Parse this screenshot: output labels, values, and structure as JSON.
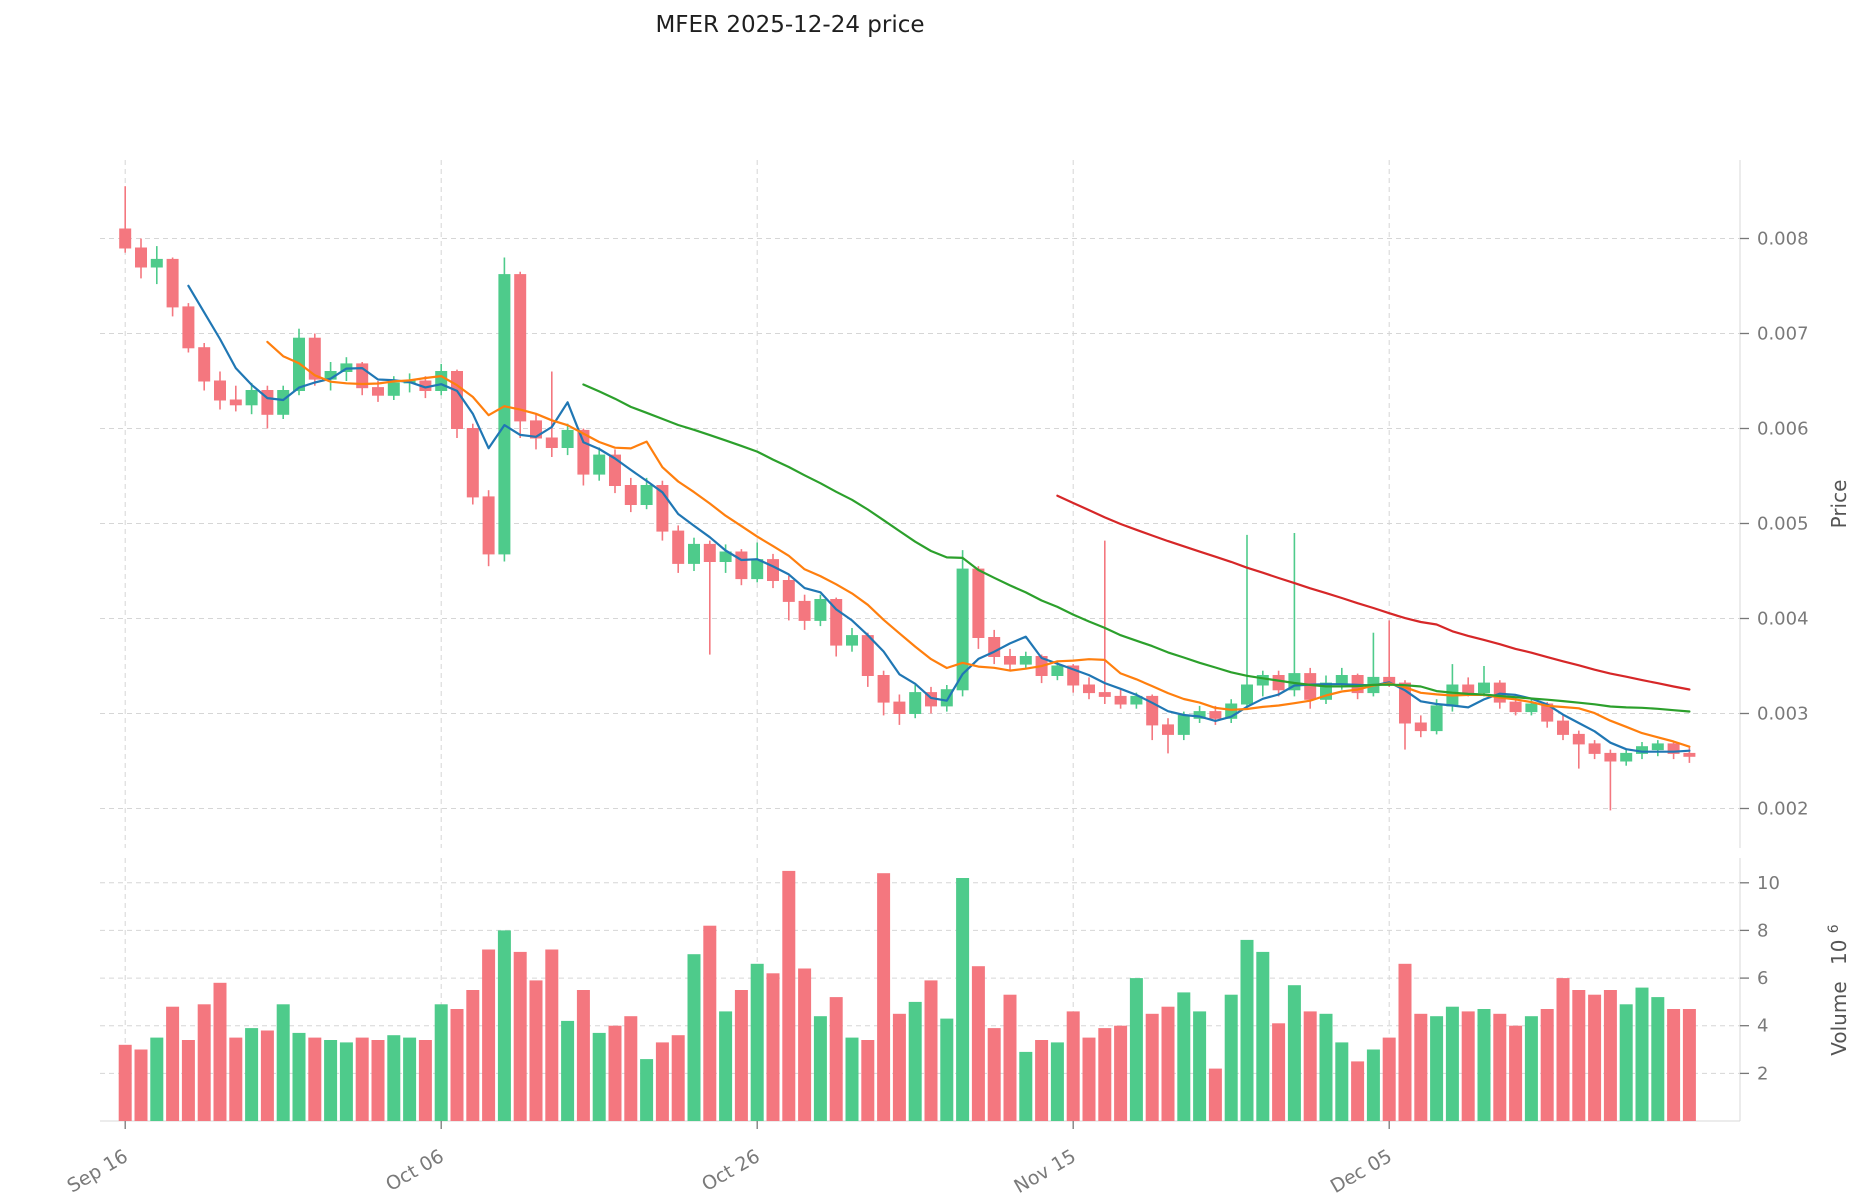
{
  "title": "MFER  2025-12-24  price",
  "price_axis": {
    "label": "Price",
    "ticks": [
      {
        "value": 0.002,
        "label": "0.002"
      },
      {
        "value": 0.003,
        "label": "0.003"
      },
      {
        "value": 0.004,
        "label": "0.004"
      },
      {
        "value": 0.005,
        "label": "0.005"
      },
      {
        "value": 0.006,
        "label": "0.006"
      },
      {
        "value": 0.007,
        "label": "0.007"
      },
      {
        "value": 0.008,
        "label": "0.008"
      }
    ]
  },
  "volume_axis": {
    "label": "Volume",
    "scale_base": "10",
    "scale_exponent": "6",
    "ticks": [
      {
        "value": 2,
        "label": "2"
      },
      {
        "value": 4,
        "label": "4"
      },
      {
        "value": 6,
        "label": "6"
      },
      {
        "value": 8,
        "label": "8"
      },
      {
        "value": 10,
        "label": "10"
      }
    ]
  },
  "x_axis": {
    "ticks": [
      {
        "index": 0,
        "label": "Sep 16"
      },
      {
        "index": 20,
        "label": "Oct 06"
      },
      {
        "index": 40,
        "label": "Oct 26"
      },
      {
        "index": 60,
        "label": "Nov 15"
      },
      {
        "index": 80,
        "label": "Dec 05"
      }
    ]
  },
  "colors": {
    "up": "#4ecb8b",
    "down": "#f4777f",
    "ma": [
      "#2077b4",
      "#ff7f0e",
      "#2ca02c",
      "#d62728"
    ],
    "grid": "#d6d6d6",
    "spine": "#d9d9d9",
    "tick_mark": "#777777",
    "tick_text": "#7a7a7a",
    "axis_label": "#555555",
    "title": "#1f1f1f",
    "background": "#ffffff"
  },
  "chart_data": {
    "type": "candlestick",
    "has_volume_panel": true,
    "price_ylim": [
      0.001584,
      0.008826
    ],
    "volume_ylim_millions": [
      0,
      11.04
    ],
    "moving_averages": [
      {
        "window": 5,
        "color": "#2077b4"
      },
      {
        "window": 10,
        "color": "#ff7f0e"
      },
      {
        "window": 30,
        "color": "#2ca02c"
      },
      {
        "window": 60,
        "color": "#d62728"
      }
    ],
    "dates": [
      "2025-09-16",
      "2025-09-17",
      "2025-09-18",
      "2025-09-19",
      "2025-09-20",
      "2025-09-21",
      "2025-09-22",
      "2025-09-23",
      "2025-09-24",
      "2025-09-25",
      "2025-09-26",
      "2025-09-27",
      "2025-09-28",
      "2025-09-29",
      "2025-09-30",
      "2025-10-01",
      "2025-10-02",
      "2025-10-03",
      "2025-10-04",
      "2025-10-05",
      "2025-10-06",
      "2025-10-07",
      "2025-10-08",
      "2025-10-09",
      "2025-10-10",
      "2025-10-11",
      "2025-10-12",
      "2025-10-13",
      "2025-10-14",
      "2025-10-15",
      "2025-10-16",
      "2025-10-17",
      "2025-10-18",
      "2025-10-19",
      "2025-10-20",
      "2025-10-21",
      "2025-10-22",
      "2025-10-23",
      "2025-10-24",
      "2025-10-25",
      "2025-10-26",
      "2025-10-27",
      "2025-10-28",
      "2025-10-29",
      "2025-10-30",
      "2025-10-31",
      "2025-11-01",
      "2025-11-02",
      "2025-11-03",
      "2025-11-04",
      "2025-11-05",
      "2025-11-06",
      "2025-11-07",
      "2025-11-08",
      "2025-11-09",
      "2025-11-10",
      "2025-11-11",
      "2025-11-12",
      "2025-11-13",
      "2025-11-14",
      "2025-11-15",
      "2025-11-16",
      "2025-11-17",
      "2025-11-18",
      "2025-11-19",
      "2025-11-20",
      "2025-11-21",
      "2025-11-22",
      "2025-11-23",
      "2025-11-24",
      "2025-11-25",
      "2025-11-26",
      "2025-11-27",
      "2025-11-28",
      "2025-11-29",
      "2025-11-30",
      "2025-12-01",
      "2025-12-02",
      "2025-12-03",
      "2025-12-04",
      "2025-12-05",
      "2025-12-06",
      "2025-12-07",
      "2025-12-08",
      "2025-12-09",
      "2025-12-10",
      "2025-12-11",
      "2025-12-12",
      "2025-12-13",
      "2025-12-14",
      "2025-12-15",
      "2025-12-16",
      "2025-12-17",
      "2025-12-18",
      "2025-12-19",
      "2025-12-20",
      "2025-12-21",
      "2025-12-22",
      "2025-12-23",
      "2025-12-24"
    ],
    "ohlc": [
      [
        0.0081,
        0.00855,
        0.00785,
        0.0079
      ],
      [
        0.0079,
        0.008,
        0.00758,
        0.0077
      ],
      [
        0.0077,
        0.00792,
        0.00752,
        0.00778
      ],
      [
        0.00778,
        0.0078,
        0.00718,
        0.00728
      ],
      [
        0.00728,
        0.00732,
        0.0068,
        0.00685
      ],
      [
        0.00685,
        0.0069,
        0.0064,
        0.0065
      ],
      [
        0.0065,
        0.0066,
        0.0062,
        0.0063
      ],
      [
        0.0063,
        0.00645,
        0.00618,
        0.00625
      ],
      [
        0.00625,
        0.00648,
        0.00615,
        0.0064
      ],
      [
        0.0064,
        0.00645,
        0.006,
        0.00615
      ],
      [
        0.00615,
        0.00645,
        0.0061,
        0.0064
      ],
      [
        0.0064,
        0.00705,
        0.00635,
        0.00695
      ],
      [
        0.00695,
        0.007,
        0.00645,
        0.00652
      ],
      [
        0.00652,
        0.0067,
        0.0064,
        0.0066
      ],
      [
        0.0066,
        0.00675,
        0.0065,
        0.00668
      ],
      [
        0.00668,
        0.0067,
        0.00635,
        0.00643
      ],
      [
        0.00643,
        0.0065,
        0.00628,
        0.00635
      ],
      [
        0.00635,
        0.00655,
        0.0063,
        0.00648
      ],
      [
        0.00648,
        0.00658,
        0.00638,
        0.0065
      ],
      [
        0.0065,
        0.00655,
        0.00632,
        0.0064
      ],
      [
        0.0064,
        0.00668,
        0.00635,
        0.0066
      ],
      [
        0.0066,
        0.00662,
        0.0059,
        0.006
      ],
      [
        0.006,
        0.00605,
        0.0052,
        0.00528
      ],
      [
        0.00528,
        0.00535,
        0.00455,
        0.00468
      ],
      [
        0.00468,
        0.0078,
        0.0046,
        0.00762
      ],
      [
        0.00762,
        0.00765,
        0.0059,
        0.00608
      ],
      [
        0.00608,
        0.00615,
        0.00578,
        0.0059
      ],
      [
        0.0059,
        0.0066,
        0.0057,
        0.0058
      ],
      [
        0.0058,
        0.00605,
        0.00572,
        0.00598
      ],
      [
        0.00598,
        0.006,
        0.0054,
        0.00552
      ],
      [
        0.00552,
        0.0058,
        0.00545,
        0.00572
      ],
      [
        0.00572,
        0.00578,
        0.00532,
        0.0054
      ],
      [
        0.0054,
        0.00548,
        0.00512,
        0.0052
      ],
      [
        0.0052,
        0.00548,
        0.00515,
        0.0054
      ],
      [
        0.0054,
        0.00545,
        0.00482,
        0.00492
      ],
      [
        0.00492,
        0.00498,
        0.00448,
        0.00458
      ],
      [
        0.00458,
        0.00485,
        0.0045,
        0.00478
      ],
      [
        0.00478,
        0.00482,
        0.00362,
        0.0046
      ],
      [
        0.0046,
        0.00478,
        0.00448,
        0.0047
      ],
      [
        0.0047,
        0.00473,
        0.00435,
        0.00442
      ],
      [
        0.00442,
        0.0048,
        0.00438,
        0.00462
      ],
      [
        0.00462,
        0.00468,
        0.00432,
        0.0044
      ],
      [
        0.0044,
        0.00445,
        0.00398,
        0.00418
      ],
      [
        0.00418,
        0.00425,
        0.00388,
        0.00398
      ],
      [
        0.00398,
        0.00425,
        0.00392,
        0.0042
      ],
      [
        0.0042,
        0.00422,
        0.0036,
        0.00372
      ],
      [
        0.00372,
        0.0039,
        0.00365,
        0.00382
      ],
      [
        0.00382,
        0.00385,
        0.00328,
        0.0034
      ],
      [
        0.0034,
        0.00345,
        0.00298,
        0.00312
      ],
      [
        0.00312,
        0.0032,
        0.00288,
        0.003
      ],
      [
        0.003,
        0.0033,
        0.00295,
        0.00322
      ],
      [
        0.00322,
        0.00328,
        0.003,
        0.00308
      ],
      [
        0.00308,
        0.0033,
        0.00302,
        0.00325
      ],
      [
        0.00325,
        0.00472,
        0.00318,
        0.00452
      ],
      [
        0.00452,
        0.00455,
        0.00368,
        0.0038
      ],
      [
        0.0038,
        0.00388,
        0.00352,
        0.0036
      ],
      [
        0.0036,
        0.00368,
        0.00345,
        0.00352
      ],
      [
        0.00352,
        0.00365,
        0.00348,
        0.0036
      ],
      [
        0.0036,
        0.00362,
        0.00332,
        0.0034
      ],
      [
        0.0034,
        0.00355,
        0.00335,
        0.0035
      ],
      [
        0.0035,
        0.00352,
        0.00322,
        0.0033
      ],
      [
        0.0033,
        0.00338,
        0.00315,
        0.00322
      ],
      [
        0.00322,
        0.00482,
        0.0031,
        0.00318
      ],
      [
        0.00318,
        0.00325,
        0.00305,
        0.0031
      ],
      [
        0.0031,
        0.00322,
        0.00305,
        0.00318
      ],
      [
        0.00318,
        0.0032,
        0.00272,
        0.00288
      ],
      [
        0.00288,
        0.00295,
        0.00258,
        0.00278
      ],
      [
        0.00278,
        0.00302,
        0.00272,
        0.00298
      ],
      [
        0.00295,
        0.00308,
        0.0029,
        0.00302
      ],
      [
        0.00302,
        0.00308,
        0.00288,
        0.00295
      ],
      [
        0.00295,
        0.00315,
        0.0029,
        0.0031
      ],
      [
        0.0031,
        0.00488,
        0.00305,
        0.0033
      ],
      [
        0.0033,
        0.00345,
        0.00318,
        0.0034
      ],
      [
        0.0034,
        0.00345,
        0.00318,
        0.00325
      ],
      [
        0.00325,
        0.0049,
        0.00318,
        0.00342
      ],
      [
        0.00342,
        0.00348,
        0.00305,
        0.00315
      ],
      [
        0.00315,
        0.0034,
        0.0031,
        0.00332
      ],
      [
        0.00332,
        0.00348,
        0.00325,
        0.0034
      ],
      [
        0.0034,
        0.00342,
        0.00315,
        0.00322
      ],
      [
        0.00322,
        0.00385,
        0.00318,
        0.00338
      ],
      [
        0.00338,
        0.00398,
        0.00328,
        0.00332
      ],
      [
        0.00332,
        0.00335,
        0.00262,
        0.0029
      ],
      [
        0.0029,
        0.00298,
        0.00275,
        0.00282
      ],
      [
        0.00282,
        0.00315,
        0.00278,
        0.00308
      ],
      [
        0.00308,
        0.00352,
        0.00302,
        0.0033
      ],
      [
        0.0033,
        0.00338,
        0.00318,
        0.00322
      ],
      [
        0.00322,
        0.0035,
        0.00318,
        0.00332
      ],
      [
        0.00332,
        0.00335,
        0.00305,
        0.00312
      ],
      [
        0.00312,
        0.00318,
        0.00298,
        0.00302
      ],
      [
        0.00302,
        0.00315,
        0.00298,
        0.0031
      ],
      [
        0.0031,
        0.00312,
        0.00285,
        0.00292
      ],
      [
        0.00292,
        0.00298,
        0.00272,
        0.00278
      ],
      [
        0.00278,
        0.00282,
        0.00242,
        0.00268
      ],
      [
        0.00268,
        0.00272,
        0.00252,
        0.00258
      ],
      [
        0.00258,
        0.00262,
        0.00198,
        0.0025
      ],
      [
        0.0025,
        0.00262,
        0.00245,
        0.00258
      ],
      [
        0.00258,
        0.0027,
        0.00252,
        0.00265
      ],
      [
        0.00262,
        0.00272,
        0.00255,
        0.00268
      ],
      [
        0.00268,
        0.0027,
        0.00252,
        0.00258
      ],
      [
        0.00258,
        0.00264,
        0.00248,
        0.00255
      ]
    ],
    "volume_millions": [
      3.2,
      3.0,
      3.5,
      4.8,
      3.4,
      4.9,
      5.8,
      3.5,
      3.9,
      3.8,
      4.9,
      3.7,
      3.5,
      3.4,
      3.3,
      3.5,
      3.4,
      3.6,
      3.5,
      3.4,
      4.9,
      4.7,
      5.5,
      7.2,
      8.0,
      7.1,
      5.9,
      7.2,
      4.2,
      5.5,
      3.7,
      4.0,
      4.4,
      2.6,
      3.3,
      3.6,
      7.0,
      8.2,
      4.6,
      5.5,
      6.6,
      6.2,
      10.5,
      6.4,
      4.4,
      5.2,
      3.5,
      3.4,
      10.4,
      4.5,
      5.0,
      5.9,
      4.3,
      10.2,
      6.5,
      3.9,
      5.3,
      2.9,
      3.4,
      3.3,
      4.6,
      3.5,
      3.9,
      4.0,
      6.0,
      4.5,
      4.8,
      5.4,
      4.6,
      2.2,
      5.3,
      7.6,
      7.1,
      4.1,
      5.7,
      4.6,
      4.5,
      3.3,
      2.5,
      3.0,
      3.5,
      6.6,
      4.5,
      4.4,
      4.8,
      4.6,
      4.7,
      4.5,
      4.0,
      4.4,
      4.7,
      6.0,
      5.5,
      5.3,
      5.5,
      4.9,
      5.6,
      5.2,
      4.7,
      4.7
    ]
  }
}
